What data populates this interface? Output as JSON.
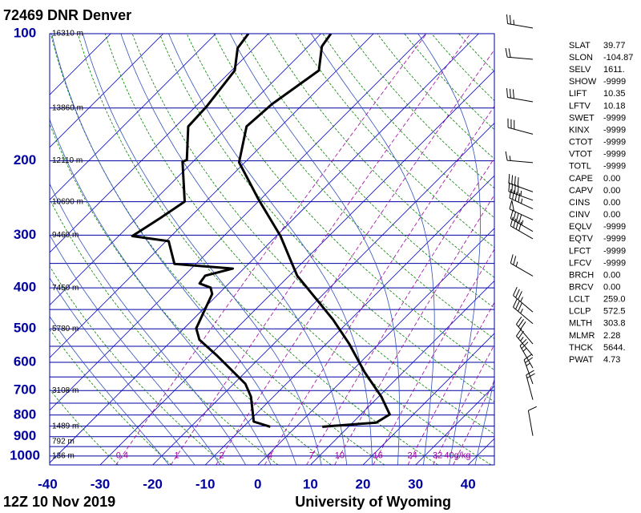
{
  "chart_data": {
    "type": "skewt",
    "title": "72469 DNR Denver",
    "time": "12Z 10 Nov 2019",
    "source": "University of Wyoming",
    "ylim": [
      1050,
      100
    ],
    "log_y": true,
    "yticks": [
      100,
      200,
      300,
      400,
      500,
      600,
      700,
      800,
      900,
      1000
    ],
    "isobars": [
      150,
      250,
      350,
      450,
      550,
      650,
      750,
      850,
      950
    ],
    "xlim": [
      -39.6,
      45
    ],
    "xticks": [
      -40,
      -30,
      -20,
      -10,
      0,
      10,
      20,
      30,
      40
    ],
    "isotherms": [
      -110,
      -100,
      -90,
      -80,
      -70,
      -60,
      -50,
      -40,
      -30,
      -20,
      -10,
      0,
      10,
      20,
      30,
      40
    ],
    "dry_adiabats": [
      -30,
      -20,
      -10,
      0,
      10,
      20,
      30,
      40,
      50,
      60,
      70,
      80,
      90,
      100,
      110,
      120,
      130,
      140,
      150,
      160,
      170
    ],
    "moist_adiabats": [
      -20,
      -15,
      -10,
      -5,
      0,
      5,
      10,
      15,
      20,
      25,
      30,
      35,
      40
    ],
    "mixing_ratios": [
      0.4,
      1,
      2,
      4,
      7,
      10,
      16,
      24,
      32,
      {
        "value": 40,
        "label": "40g/kg"
      }
    ],
    "colors": {
      "isobar": "#0000a0",
      "isotherm": "#0000c8",
      "dry_adiabat": "#008000",
      "moist_adiabat": "#3050c0",
      "mixing_ratio": "#a000a0"
    },
    "heights": [
      {
        "pressure": 100,
        "label": "16310 m"
      },
      {
        "pressure": 150,
        "label": "13860 m"
      },
      {
        "pressure": 200,
        "label": "12110 m"
      },
      {
        "pressure": 250,
        "label": "10690 m"
      },
      {
        "pressure": 300,
        "label": "9460 m"
      },
      {
        "pressure": 400,
        "label": "7450 m"
      },
      {
        "pressure": 500,
        "label": "5780 m"
      },
      {
        "pressure": 700,
        "label": "3108 m"
      },
      {
        "pressure": 850,
        "label": "1489 m"
      },
      {
        "pressure": 925,
        "label": "792 m"
      },
      {
        "pressure": 1000,
        "label": "136 m"
      }
    ],
    "series": [
      {
        "color": "#000000",
        "pressure": [
          100,
          107.2,
          122.2,
          146.8,
          165.9,
          201.7,
          247.6,
          301.5,
          350.9,
          374.1,
          475.7,
          543,
          633.6,
          723.5,
          797.4,
          833.8,
          852.6
        ],
        "values": [
          -68.1,
          -67.4,
          -63.4,
          -65.9,
          -66.5,
          -61.1,
          -50.2,
          -39.2,
          -31.7,
          -28.5,
          -13.3,
          -5.6,
          2.7,
          10.5,
          15.5,
          14.5,
          5.0
        ]
      },
      {
        "color": "#000000",
        "pressure": [
          100,
          108.2,
          122.2,
          148.8,
          165.9,
          199.1,
          200.9,
          249.8,
          273.3,
          301.5,
          310.1,
          350.9,
          360,
          374.1,
          390.3,
          399.4,
          413.3,
          498.6,
          530.8,
          579,
          674.6,
          723.5,
          829.3,
          852.6
        ],
        "values": [
          -83.8,
          -83.1,
          -79.4,
          -77.9,
          -77.6,
          -71.5,
          -72.0,
          -64.0,
          -65.5,
          -67.4,
          -59.5,
          -54.1,
          -42.1,
          -46.0,
          -45.6,
          -42.7,
          -41.2,
          -37.7,
          -34.9,
          -28.5,
          -17.8,
          -14.3,
          -9.0,
          -4.9
        ]
      }
    ],
    "winds": {
      "pressure": [
        97,
        115,
        145,
        173,
        202,
        237,
        248,
        260,
        276,
        294,
        306,
        375,
        456,
        486,
        543,
        579,
        619,
        675,
        736,
        896
      ],
      "direction": [
        280,
        275,
        280,
        285,
        275,
        290,
        290,
        295,
        295,
        300,
        300,
        300,
        310,
        310,
        320,
        320,
        330,
        340,
        345,
        350
      ],
      "speed": [
        25,
        20,
        30,
        30,
        15,
        40,
        45,
        45,
        50,
        45,
        40,
        25,
        35,
        35,
        30,
        25,
        25,
        25,
        20,
        10
      ]
    },
    "indices": [
      [
        "SLAT",
        "39.77"
      ],
      [
        "SLON",
        "-104.87"
      ],
      [
        "SELV",
        "1611."
      ],
      [
        "SHOW",
        "-9999"
      ],
      [
        "LIFT",
        "10.35"
      ],
      [
        "LFTV",
        "10.18"
      ],
      [
        "SWET",
        "-9999"
      ],
      [
        "KINX",
        "-9999"
      ],
      [
        "CTOT",
        "-9999"
      ],
      [
        "VTOT",
        "-9999"
      ],
      [
        "TOTL",
        "-9999"
      ],
      [
        "CAPE",
        "0.00"
      ],
      [
        "CAPV",
        "0.00"
      ],
      [
        "CINS",
        "0.00"
      ],
      [
        "CINV",
        "0.00"
      ],
      [
        "EQLV",
        "-9999"
      ],
      [
        "EQTV",
        "-9999"
      ],
      [
        "LFCT",
        "-9999"
      ],
      [
        "LFCV",
        "-9999"
      ],
      [
        "BRCH",
        "0.00"
      ],
      [
        "BRCV",
        "0.00"
      ],
      [
        "LCLT",
        "259.0"
      ],
      [
        "LCLP",
        "572.5"
      ],
      [
        "MLTH",
        "303.8"
      ],
      [
        "MLMR",
        "2.28"
      ],
      [
        "THCK",
        "5644."
      ],
      [
        "PWAT",
        "4.73"
      ]
    ]
  }
}
